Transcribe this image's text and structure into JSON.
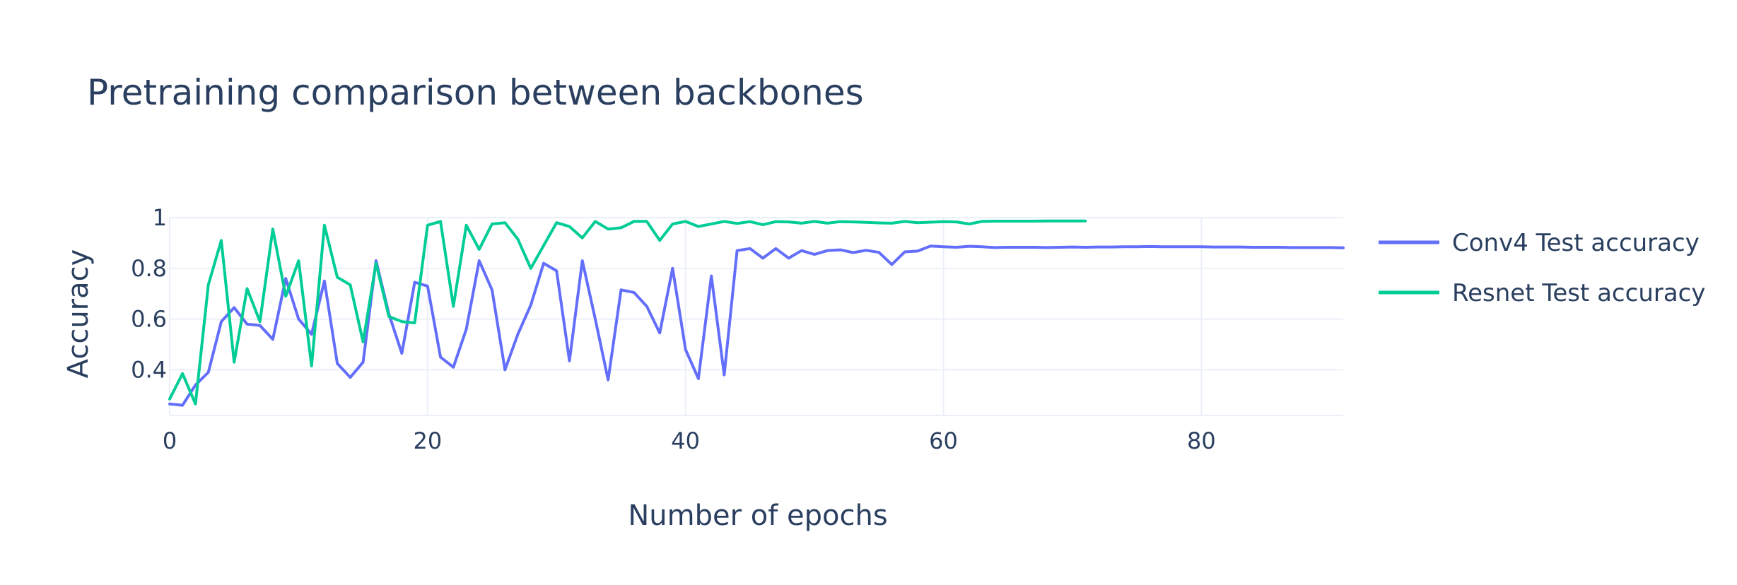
{
  "chart_data": {
    "type": "line",
    "title": "Pretraining comparison between backbones",
    "xlabel": "Number of epochs",
    "ylabel": "Accuracy",
    "xlim": [
      0,
      91
    ],
    "ylim": [
      0.22,
      1.0
    ],
    "xticks": [
      0,
      20,
      40,
      60,
      80
    ],
    "yticks": [
      0.4,
      0.6,
      0.8,
      1
    ],
    "xtick_labels": [
      "0",
      "20",
      "40",
      "60",
      "80"
    ],
    "ytick_labels": [
      "0.4",
      "0.6",
      "0.8",
      "1"
    ],
    "grid": true,
    "legend_position": "right",
    "series": [
      {
        "name": "Conv4 Test accuracy",
        "color": "#636efa",
        "x": [
          0,
          1,
          2,
          3,
          4,
          5,
          6,
          7,
          8,
          9,
          10,
          11,
          12,
          13,
          14,
          15,
          16,
          17,
          18,
          19,
          20,
          21,
          22,
          23,
          24,
          25,
          26,
          27,
          28,
          29,
          30,
          31,
          32,
          33,
          34,
          35,
          36,
          37,
          38,
          39,
          40,
          41,
          42,
          43,
          44,
          45,
          46,
          47,
          48,
          49,
          50,
          51,
          52,
          53,
          54,
          55,
          56,
          57,
          58,
          59,
          60,
          61,
          62,
          63,
          64,
          65,
          66,
          67,
          68,
          69,
          70,
          71,
          72,
          73,
          74,
          75,
          76,
          77,
          78,
          79,
          80,
          81,
          82,
          83,
          84,
          85,
          86,
          87,
          88,
          89,
          90,
          91
        ],
        "y": [
          0.265,
          0.26,
          0.34,
          0.39,
          0.59,
          0.645,
          0.58,
          0.575,
          0.52,
          0.76,
          0.6,
          0.54,
          0.75,
          0.425,
          0.37,
          0.43,
          0.83,
          0.62,
          0.465,
          0.745,
          0.73,
          0.45,
          0.41,
          0.56,
          0.83,
          0.715,
          0.4,
          0.54,
          0.655,
          0.82,
          0.79,
          0.435,
          0.83,
          0.6,
          0.36,
          0.715,
          0.705,
          0.65,
          0.545,
          0.8,
          0.48,
          0.365,
          0.77,
          0.38,
          0.87,
          0.878,
          0.84,
          0.878,
          0.84,
          0.87,
          0.855,
          0.87,
          0.873,
          0.862,
          0.871,
          0.863,
          0.815,
          0.865,
          0.868,
          0.888,
          0.885,
          0.883,
          0.887,
          0.885,
          0.882,
          0.883,
          0.883,
          0.883,
          0.882,
          0.883,
          0.884,
          0.883,
          0.884,
          0.884,
          0.885,
          0.885,
          0.886,
          0.885,
          0.885,
          0.885,
          0.885,
          0.884,
          0.884,
          0.884,
          0.883,
          0.883,
          0.883,
          0.882,
          0.882,
          0.882,
          0.882,
          0.881
        ]
      },
      {
        "name": "Resnet Test accuracy",
        "color": "#00cc96",
        "x": [
          0,
          1,
          2,
          3,
          4,
          5,
          6,
          7,
          8,
          9,
          10,
          11,
          12,
          13,
          14,
          15,
          16,
          17,
          18,
          19,
          20,
          21,
          22,
          23,
          24,
          25,
          26,
          27,
          28,
          29,
          30,
          31,
          32,
          33,
          34,
          35,
          36,
          37,
          38,
          39,
          40,
          41,
          42,
          43,
          44,
          45,
          46,
          47,
          48,
          49,
          50,
          51,
          52,
          53,
          54,
          55,
          56,
          57,
          58,
          59,
          60,
          61,
          62,
          63,
          64,
          65,
          66,
          67,
          68,
          69,
          70,
          71
        ],
        "y": [
          0.285,
          0.385,
          0.265,
          0.735,
          0.91,
          0.43,
          0.72,
          0.59,
          0.955,
          0.69,
          0.83,
          0.415,
          0.97,
          0.765,
          0.735,
          0.51,
          0.82,
          0.61,
          0.59,
          0.585,
          0.97,
          0.985,
          0.65,
          0.97,
          0.875,
          0.975,
          0.98,
          0.915,
          0.8,
          0.89,
          0.98,
          0.965,
          0.92,
          0.985,
          0.955,
          0.96,
          0.985,
          0.985,
          0.91,
          0.975,
          0.985,
          0.965,
          0.975,
          0.985,
          0.977,
          0.984,
          0.972,
          0.984,
          0.983,
          0.978,
          0.985,
          0.978,
          0.984,
          0.983,
          0.981,
          0.979,
          0.978,
          0.985,
          0.98,
          0.982,
          0.984,
          0.983,
          0.975,
          0.985,
          0.986,
          0.986,
          0.986,
          0.986,
          0.987,
          0.987,
          0.987,
          0.987
        ]
      }
    ]
  }
}
